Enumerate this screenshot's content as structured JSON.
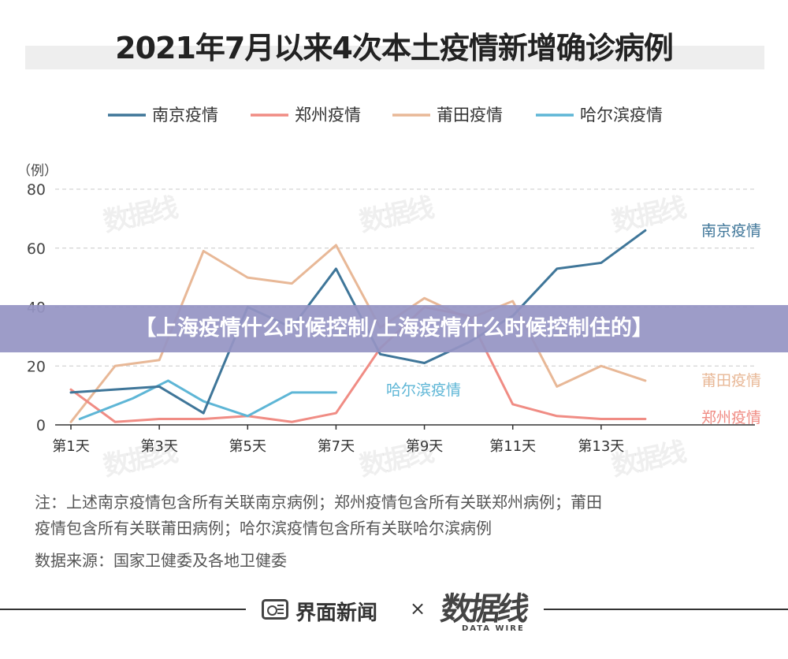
{
  "title": "2021年7月以来4次本土疫情新增确诊病例",
  "banner": "【上海疫情什么时候控制/上海疫情什么时候控制住的】",
  "notes": [
    "注：上述南京疫情包含所有关联南京病例；郑州疫情包含所有关联郑州病例；莆田",
    "疫情包含所有关联莆田病例；哈尔滨疫情包含所有关联哈尔滨病例",
    "数据来源：国家卫健委及各地卫健委"
  ],
  "footer": {
    "brand": "界面新闻",
    "times": "×",
    "logo": "数据线",
    "logo_sub": "DATA WIRE"
  },
  "watermark": "数据线",
  "colors": {
    "nanjing": "#3f7699",
    "zhengzhou": "#f08c84",
    "putian": "#e8b897",
    "harbin": "#5eb6d6"
  },
  "chart_data": {
    "type": "line",
    "ylabel": "（例）",
    "ylim": [
      0,
      80
    ],
    "yticks": [
      0,
      20,
      40,
      60,
      80
    ],
    "xlim": [
      1,
      15
    ],
    "xticks": [
      {
        "x": 1,
        "label": "第1天"
      },
      {
        "x": 3,
        "label": "第3天"
      },
      {
        "x": 5,
        "label": "第5天"
      },
      {
        "x": 7,
        "label": "第7天"
      },
      {
        "x": 9,
        "label": "第9天"
      },
      {
        "x": 11,
        "label": "第11天"
      },
      {
        "x": 13,
        "label": "第13天"
      }
    ],
    "grid": true,
    "legend": "top",
    "series": [
      {
        "name": "南京疫情",
        "color": "#3f7699",
        "x": [
          1,
          2,
          3,
          4,
          5,
          6,
          7,
          8,
          9,
          10,
          11,
          12,
          13,
          14
        ],
        "values": [
          11,
          12,
          13,
          4,
          40,
          33,
          53,
          24,
          21,
          28,
          37,
          53,
          55,
          66
        ]
      },
      {
        "name": "郑州疫情",
        "color": "#f08c84",
        "x": [
          1,
          2,
          3,
          4,
          5,
          6,
          7,
          8,
          9,
          10,
          11,
          12,
          13,
          14
        ],
        "values": [
          12,
          1,
          2,
          2,
          3,
          1,
          4,
          26,
          40,
          37,
          7,
          3,
          2,
          2
        ]
      },
      {
        "name": "莆田疫情",
        "color": "#e8b897",
        "x": [
          1,
          2,
          3,
          4,
          5,
          6,
          7,
          8,
          9,
          10,
          11,
          12,
          13,
          14
        ],
        "values": [
          1,
          20,
          22,
          59,
          50,
          48,
          61,
          33,
          43,
          36,
          42,
          13,
          20,
          15
        ]
      },
      {
        "name": "哈尔滨疫情",
        "color": "#5eb6d6",
        "x": [
          1.2,
          2.4,
          3.2,
          4.0,
          5.0,
          6.0,
          7.0
        ],
        "values": [
          2,
          9,
          15,
          8,
          3,
          11,
          11
        ]
      }
    ],
    "end_labels": [
      {
        "series": 0,
        "text": "南京疫情"
      },
      {
        "series": 2,
        "text": "莆田疫情"
      },
      {
        "series": 1,
        "text": "郑州疫情"
      },
      {
        "series": 3,
        "text": "哈尔滨疫情"
      }
    ]
  }
}
